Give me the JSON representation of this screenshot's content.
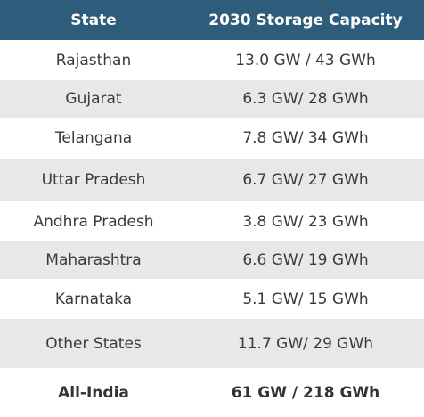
{
  "colors": {
    "header_bg": "#2d5d7b",
    "row_alt_bg": "#e8e8e8",
    "text": "#3a3a3a"
  },
  "table": {
    "headers": [
      "State",
      "2030 Storage Capacity"
    ],
    "rows": [
      [
        "Rajasthan",
        "13.0 GW / 43 GWh"
      ],
      [
        "Gujarat",
        "6.3 GW/ 28 GWh"
      ],
      [
        "Telangana",
        "7.8 GW/ 34 GWh"
      ],
      [
        "Uttar Pradesh",
        "6.7 GW/ 27 GWh"
      ],
      [
        "Andhra Pradesh",
        "3.8 GW/ 23 GWh"
      ],
      [
        "Maharashtra",
        "6.6 GW/ 19 GWh"
      ],
      [
        "Karnataka",
        "5.1 GW/ 15 GWh"
      ],
      [
        "Other States",
        "11.7 GW/ 29 GWh"
      ]
    ],
    "total": [
      "All-India",
      "61 GW / 218 GWh"
    ]
  }
}
